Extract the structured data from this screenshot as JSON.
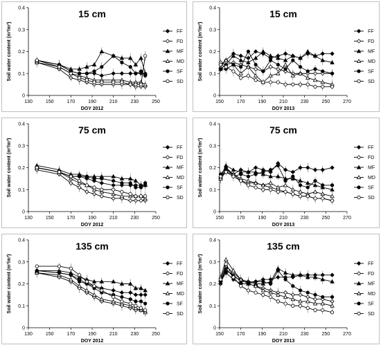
{
  "legend_labels": [
    "FF",
    "FD",
    "MF",
    "MD",
    "SF",
    "SD"
  ],
  "chart_data": [
    {
      "type": "line",
      "title": "15 cm",
      "xlabel": "DOY 2012",
      "ylabel": "Soil water content (m³/m³)",
      "xlim": [
        130,
        250
      ],
      "ylim": [
        0,
        0.4
      ],
      "xticks": [
        "130",
        "150",
        "170",
        "190",
        "210",
        "230",
        "250"
      ],
      "yticks": [
        "0",
        "0.1",
        "0.2",
        "0.3",
        "0.4"
      ],
      "x": [
        138,
        159,
        170,
        178,
        185,
        192,
        199,
        210,
        218,
        226,
        231,
        236,
        240
      ],
      "series": [
        {
          "name": "FF",
          "values": [
            0.16,
            0.14,
            0.11,
            0.1,
            0.1,
            0.1,
            0.09,
            0.1,
            0.1,
            0.1,
            0.1,
            0.1,
            0.1
          ]
        },
        {
          "name": "FD",
          "values": [
            0.15,
            0.12,
            0.08,
            0.07,
            0.06,
            0.05,
            0.05,
            0.05,
            0.05,
            0.05,
            0.04,
            0.04,
            0.04
          ]
        },
        {
          "name": "MF",
          "values": [
            0.16,
            0.14,
            0.12,
            0.12,
            0.13,
            0.14,
            0.2,
            0.18,
            0.17,
            0.17,
            0.14,
            0.17,
            0.1
          ]
        },
        {
          "name": "MD",
          "values": [
            0.15,
            0.13,
            0.1,
            0.09,
            0.08,
            0.07,
            0.07,
            0.07,
            0.07,
            0.06,
            0.06,
            0.06,
            0.05
          ]
        },
        {
          "name": "SF",
          "values": [
            0.16,
            0.14,
            0.11,
            0.1,
            0.1,
            0.11,
            0.13,
            0.18,
            0.15,
            0.13,
            0.1,
            0.11,
            0.09
          ]
        },
        {
          "name": "SD",
          "values": [
            0.16,
            0.13,
            0.1,
            0.08,
            0.07,
            0.06,
            0.06,
            0.06,
            0.06,
            0.05,
            0.05,
            0.05,
            0.18
          ]
        }
      ]
    },
    {
      "type": "line",
      "title": "15 cm",
      "xlabel": "DOY 2013",
      "ylabel": "Soil water content (m³/m³)",
      "xlim": [
        150,
        270
      ],
      "ylim": [
        0,
        0.4
      ],
      "xticks": [
        "150",
        "170",
        "190",
        "210",
        "230",
        "250",
        "270"
      ],
      "yticks": [
        "0",
        "0.1",
        "0.2",
        "0.3",
        "0.4"
      ],
      "x": [
        151,
        156,
        163,
        170,
        177,
        184,
        191,
        198,
        205,
        212,
        219,
        226,
        233,
        240,
        247,
        256
      ],
      "series": [
        {
          "name": "FF",
          "values": [
            0.14,
            0.16,
            0.19,
            0.18,
            0.17,
            0.2,
            0.19,
            0.17,
            0.18,
            0.19,
            0.18,
            0.17,
            0.19,
            0.18,
            0.19,
            0.19
          ]
        },
        {
          "name": "FD",
          "values": [
            0.15,
            0.14,
            0.15,
            0.14,
            0.13,
            0.12,
            0.11,
            0.13,
            0.12,
            0.11,
            0.1,
            0.1,
            0.1,
            0.1,
            0.1,
            0.1
          ]
        },
        {
          "name": "MF",
          "values": [
            0.12,
            0.14,
            0.18,
            0.16,
            0.15,
            0.17,
            0.2,
            0.18,
            0.17,
            0.16,
            0.18,
            0.17,
            0.2,
            0.18,
            0.16,
            0.15
          ]
        },
        {
          "name": "MD",
          "values": [
            0.13,
            0.16,
            0.14,
            0.1,
            0.13,
            0.09,
            0.06,
            0.09,
            0.1,
            0.14,
            0.09,
            0.1,
            0.08,
            0.07,
            0.06,
            0.05
          ]
        },
        {
          "name": "SF",
          "values": [
            0.12,
            0.12,
            0.14,
            0.13,
            0.2,
            0.14,
            0.11,
            0.16,
            0.14,
            0.12,
            0.16,
            0.13,
            0.11,
            0.12,
            0.11,
            0.1
          ]
        },
        {
          "name": "SD",
          "values": [
            0.14,
            0.13,
            0.11,
            0.08,
            0.09,
            0.07,
            0.06,
            0.06,
            0.06,
            0.05,
            0.05,
            0.05,
            0.05,
            0.04,
            0.04,
            0.04
          ]
        }
      ]
    },
    {
      "type": "line",
      "title": "75 cm",
      "xlabel": "DOY 2012",
      "ylabel": "Soil water content (m³/m³)",
      "xlim": [
        130,
        250
      ],
      "ylim": [
        0,
        0.4
      ],
      "xticks": [
        "130",
        "150",
        "170",
        "190",
        "210",
        "230",
        "250"
      ],
      "yticks": [
        "0",
        "0.1",
        "0.2",
        "0.3",
        "0.4"
      ],
      "x": [
        138,
        159,
        170,
        178,
        185,
        192,
        199,
        210,
        218,
        226,
        231,
        236,
        240
      ],
      "series": [
        {
          "name": "FF",
          "values": [
            0.2,
            0.18,
            0.16,
            0.16,
            0.15,
            0.14,
            0.13,
            0.12,
            0.12,
            0.12,
            0.12,
            0.12,
            0.12
          ]
        },
        {
          "name": "FD",
          "values": [
            0.19,
            0.17,
            0.13,
            0.11,
            0.09,
            0.08,
            0.07,
            0.06,
            0.06,
            0.05,
            0.05,
            0.05,
            0.05
          ]
        },
        {
          "name": "MF",
          "values": [
            0.21,
            0.19,
            0.17,
            0.17,
            0.16,
            0.16,
            0.16,
            0.16,
            0.15,
            0.15,
            0.14,
            0.12,
            0.12
          ]
        },
        {
          "name": "MD",
          "values": [
            0.2,
            0.18,
            0.15,
            0.13,
            0.12,
            0.1,
            0.09,
            0.08,
            0.07,
            0.07,
            0.07,
            0.07,
            0.06
          ]
        },
        {
          "name": "SF",
          "values": [
            0.2,
            0.18,
            0.16,
            0.16,
            0.16,
            0.15,
            0.15,
            0.14,
            0.13,
            0.13,
            0.11,
            0.11,
            0.13
          ]
        },
        {
          "name": "SD",
          "values": [
            0.2,
            0.18,
            0.16,
            0.14,
            0.12,
            0.11,
            0.1,
            0.1,
            0.09,
            0.08,
            0.07,
            0.07,
            0.07
          ]
        }
      ]
    },
    {
      "type": "line",
      "title": "75 cm",
      "xlabel": "DOY 2013",
      "ylabel": "Soil water content (m³/m³)",
      "xlim": [
        150,
        270
      ],
      "ylim": [
        0,
        0.4
      ],
      "xticks": [
        "150",
        "170",
        "190",
        "210",
        "230",
        "250",
        "270"
      ],
      "yticks": [
        "0",
        "0.1",
        "0.2",
        "0.3",
        "0.4"
      ],
      "x": [
        151,
        156,
        163,
        170,
        177,
        184,
        191,
        198,
        205,
        212,
        219,
        226,
        233,
        240,
        247,
        256
      ],
      "series": [
        {
          "name": "FF",
          "values": [
            0.16,
            0.19,
            0.17,
            0.19,
            0.18,
            0.2,
            0.19,
            0.18,
            0.22,
            0.19,
            0.18,
            0.2,
            0.2,
            0.19,
            0.19,
            0.2
          ]
        },
        {
          "name": "FD",
          "values": [
            0.15,
            0.18,
            0.17,
            0.14,
            0.13,
            0.13,
            0.12,
            0.11,
            0.1,
            0.09,
            0.08,
            0.07,
            0.07,
            0.06,
            0.06,
            0.05
          ]
        },
        {
          "name": "MF",
          "values": [
            0.16,
            0.21,
            0.19,
            0.18,
            0.18,
            0.18,
            0.17,
            0.16,
            0.16,
            0.15,
            0.15,
            0.14,
            0.13,
            0.12,
            0.11,
            0.1
          ]
        },
        {
          "name": "MD",
          "values": [
            0.15,
            0.2,
            0.17,
            0.15,
            0.14,
            0.13,
            0.12,
            0.13,
            0.11,
            0.12,
            0.1,
            0.09,
            0.08,
            0.09,
            0.08,
            0.07
          ]
        },
        {
          "name": "SF",
          "values": [
            0.17,
            0.2,
            0.16,
            0.17,
            0.16,
            0.17,
            0.18,
            0.19,
            0.21,
            0.14,
            0.16,
            0.12,
            0.11,
            0.14,
            0.12,
            0.12
          ]
        },
        {
          "name": "SD",
          "values": [
            0.16,
            0.18,
            0.16,
            0.14,
            0.12,
            0.11,
            0.1,
            0.1,
            0.09,
            0.09,
            0.08,
            0.07,
            0.07,
            0.06,
            0.06,
            0.05
          ]
        }
      ]
    },
    {
      "type": "line",
      "title": "135 cm",
      "xlabel": "DOY 2012",
      "ylabel": "Soil water content (m³/m³)",
      "xlim": [
        130,
        250
      ],
      "ylim": [
        0,
        0.4
      ],
      "xticks": [
        "130",
        "150",
        "170",
        "190",
        "210",
        "230",
        "250"
      ],
      "yticks": [
        "0",
        "0.1",
        "0.2",
        "0.3",
        "0.4"
      ],
      "x": [
        138,
        159,
        170,
        178,
        185,
        192,
        199,
        210,
        218,
        226,
        231,
        236,
        240
      ],
      "series": [
        {
          "name": "FF",
          "values": [
            0.26,
            0.25,
            0.24,
            0.22,
            0.2,
            0.19,
            0.18,
            0.17,
            0.16,
            0.16,
            0.15,
            0.15,
            0.15
          ]
        },
        {
          "name": "FD",
          "values": [
            0.25,
            0.23,
            0.21,
            0.18,
            0.16,
            0.14,
            0.12,
            0.11,
            0.1,
            0.09,
            0.08,
            0.08,
            0.07
          ]
        },
        {
          "name": "MF",
          "values": [
            0.26,
            0.26,
            0.25,
            0.23,
            0.22,
            0.21,
            0.21,
            0.21,
            0.2,
            0.2,
            0.18,
            0.18,
            0.17
          ]
        },
        {
          "name": "MD",
          "values": [
            0.25,
            0.24,
            0.22,
            0.19,
            0.17,
            0.15,
            0.13,
            0.12,
            0.11,
            0.1,
            0.09,
            0.08,
            0.07
          ]
        },
        {
          "name": "SF",
          "values": [
            0.26,
            0.25,
            0.24,
            0.21,
            0.2,
            0.18,
            0.16,
            0.15,
            0.14,
            0.13,
            0.12,
            0.12,
            0.11
          ]
        },
        {
          "name": "SD",
          "values": [
            0.28,
            0.28,
            0.27,
            0.24,
            0.21,
            0.19,
            0.17,
            0.14,
            0.12,
            0.11,
            0.1,
            0.09,
            0.08
          ]
        }
      ]
    },
    {
      "type": "line",
      "title": "135 cm",
      "xlabel": "DOY 2013",
      "ylabel": "Soil water content (m³/m³)",
      "xlim": [
        150,
        270
      ],
      "ylim": [
        0,
        0.4
      ],
      "xticks": [
        "150",
        "170",
        "190",
        "210",
        "230",
        "250",
        "270"
      ],
      "yticks": [
        "0",
        "0.1",
        "0.2",
        "0.3",
        "0.4"
      ],
      "x": [
        151,
        156,
        163,
        170,
        177,
        184,
        191,
        198,
        205,
        212,
        219,
        226,
        233,
        240,
        247,
        256
      ],
      "series": [
        {
          "name": "FF",
          "values": [
            0.2,
            0.27,
            0.23,
            0.22,
            0.21,
            0.21,
            0.22,
            0.22,
            0.23,
            0.23,
            0.23,
            0.24,
            0.24,
            0.24,
            0.24,
            0.24
          ]
        },
        {
          "name": "FD",
          "values": [
            0.21,
            0.28,
            0.25,
            0.22,
            0.2,
            0.19,
            0.18,
            0.17,
            0.16,
            0.16,
            0.15,
            0.15,
            0.14,
            0.13,
            0.13,
            0.12
          ]
        },
        {
          "name": "MF",
          "values": [
            0.22,
            0.26,
            0.24,
            0.21,
            0.21,
            0.2,
            0.2,
            0.21,
            0.27,
            0.25,
            0.24,
            0.24,
            0.23,
            0.23,
            0.22,
            0.21
          ]
        },
        {
          "name": "MD",
          "values": [
            0.23,
            0.31,
            0.26,
            0.22,
            0.2,
            0.19,
            0.17,
            0.16,
            0.15,
            0.14,
            0.13,
            0.12,
            0.12,
            0.11,
            0.11,
            0.1
          ]
        },
        {
          "name": "SF",
          "values": [
            0.21,
            0.25,
            0.22,
            0.2,
            0.2,
            0.21,
            0.21,
            0.2,
            0.26,
            0.22,
            0.19,
            0.17,
            0.16,
            0.15,
            0.14,
            0.14
          ]
        },
        {
          "name": "SD",
          "values": [
            0.22,
            0.29,
            0.23,
            0.19,
            0.17,
            0.16,
            0.15,
            0.14,
            0.12,
            0.11,
            0.1,
            0.1,
            0.09,
            0.08,
            0.08,
            0.07
          ]
        }
      ]
    }
  ]
}
